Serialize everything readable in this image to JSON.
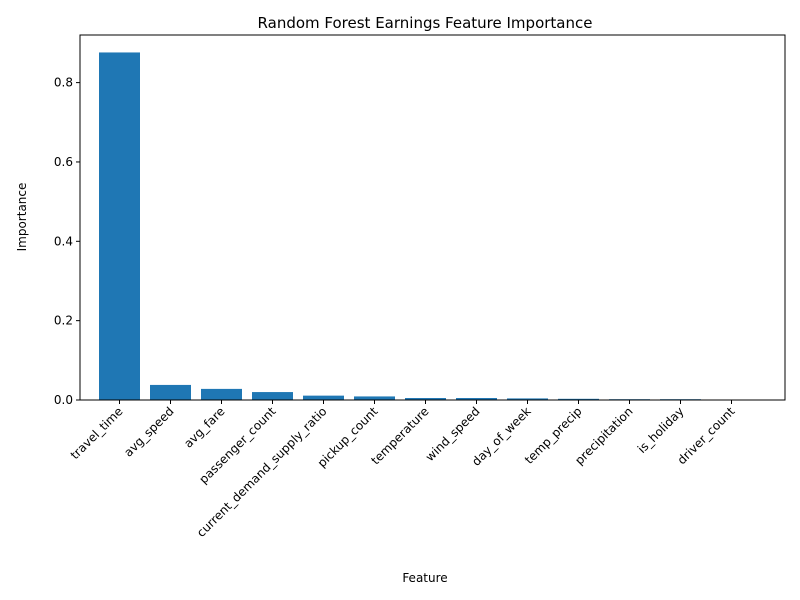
{
  "chart_data": {
    "type": "bar",
    "title": "Random Forest Earnings Feature Importance",
    "xlabel": "Feature",
    "ylabel": "Importance",
    "categories": [
      "travel_time",
      "avg_speed",
      "avg_fare",
      "passenger_count",
      "current_demand_supply_ratio",
      "pickup_count",
      "temperature",
      "wind_speed",
      "day_of_week",
      "temp_precip",
      "precipitation",
      "is_holiday",
      "driver_count"
    ],
    "values": [
      0.876,
      0.038,
      0.028,
      0.02,
      0.011,
      0.009,
      0.005,
      0.005,
      0.004,
      0.003,
      0.002,
      0.002,
      0.0003
    ],
    "ylim": [
      0,
      0.92
    ],
    "yticks": [
      0.0,
      0.2,
      0.4,
      0.6,
      0.8
    ],
    "ytick_labels": [
      "0.0",
      "0.2",
      "0.4",
      "0.6",
      "0.8"
    ],
    "bar_color": "#1f77b4",
    "grid": false
  }
}
